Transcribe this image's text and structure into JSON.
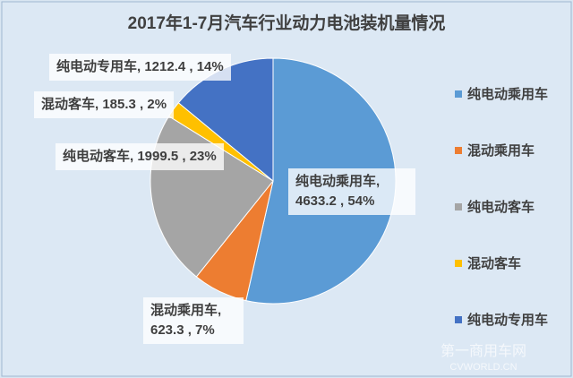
{
  "chart_data": {
    "type": "pie",
    "title": "2017年1-7月汽车行业动力电池装机量情况",
    "categories": [
      "纯电动乘用车",
      "混动乘用车",
      "纯电动客车",
      "混动客车",
      "纯电动专用车"
    ],
    "values": [
      4633.2,
      623.3,
      1999.5,
      185.3,
      1212.4
    ],
    "value_labels": [
      "纯电动乘用车, 4633.2 , 54%",
      "混动乘用车, 623.3 , 7%",
      "纯电动客车, 1999.5 , 23%",
      "混动客车, 185.3 , 2%",
      "纯电动专用车, 1212.4 , 14%"
    ],
    "colors": [
      "#5b9bd5",
      "#ed7d31",
      "#a5a5a5",
      "#ffc000",
      "#4472c4"
    ],
    "legend": "right"
  },
  "watermark": {
    "name": "第一商用车网",
    "site": "CVWORLD.CN"
  }
}
